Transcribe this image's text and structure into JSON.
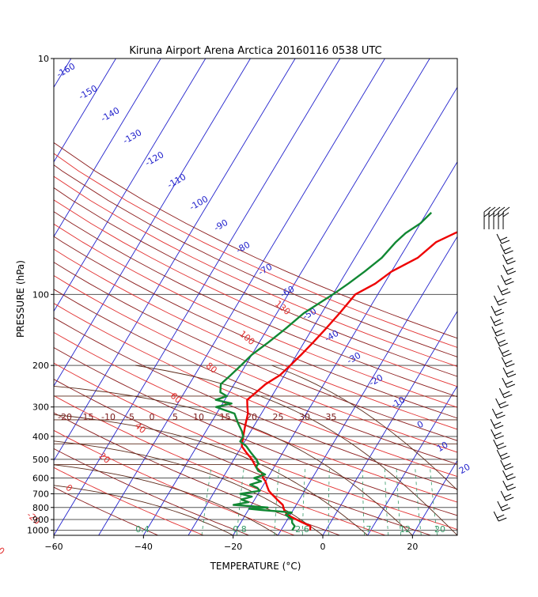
{
  "chart_data": {
    "type": "line",
    "title": "Kiruna Airport Arena Arctica 20160116 0538 UTC",
    "xlabel": "TEMPERATURE (°C)",
    "ylabel": "PRESSURE (hPa)",
    "x_ticks": [
      -60,
      -40,
      -20,
      0,
      20
    ],
    "xlim": [
      -60,
      30
    ],
    "y_ticks": [
      10,
      100,
      200,
      300,
      400,
      500,
      600,
      700,
      800,
      900,
      1000
    ],
    "ylim": [
      1050,
      10
    ],
    "y_scale": "log",
    "isotherm_labels": [
      "-20",
      "-15",
      "-10",
      "-5",
      "0",
      "5",
      "10",
      "15",
      "20",
      "25",
      "30",
      "35"
    ],
    "dry_adiabat_labels": [
      "-160",
      "-150",
      "-140",
      "-130",
      "-120",
      "-110",
      "-100",
      "-90",
      "-80",
      "-70",
      "-60",
      "-50",
      "-40",
      "-30",
      "-20",
      "-10",
      "0",
      "10",
      "20"
    ],
    "moist_adiabat_labels": [
      "130",
      "100",
      "80",
      "60",
      "40",
      "20",
      "0",
      "-20",
      "-40"
    ],
    "mixing_ratio_labels": [
      "0.4",
      "0.8",
      "2.6",
      "7",
      "12",
      "20"
    ],
    "series": [
      {
        "color": "#ee0000",
        "p": [
          1000,
          960,
          930,
          900,
          870,
          850,
          820,
          800,
          780,
          760,
          740,
          720,
          700,
          680,
          650,
          620,
          600,
          570,
          540,
          500,
          470,
          440,
          400,
          360,
          320,
          300,
          280,
          260,
          240,
          220,
          200,
          180,
          160,
          140,
          120,
          100,
          90,
          80,
          70,
          60,
          55,
          50,
          45
        ],
        "values": [
          -3.5,
          -4,
          -6,
          -8,
          -10,
          -11,
          -12,
          -12.5,
          -13,
          -14,
          -15,
          -16,
          -17,
          -18,
          -19,
          -20,
          -21,
          -22,
          -24,
          -26,
          -28,
          -30,
          -31,
          -32,
          -33,
          -34,
          -35,
          -34,
          -33,
          -31,
          -30,
          -29,
          -28,
          -27,
          -26,
          -25,
          -22,
          -20,
          -16,
          -14,
          -11,
          -7,
          -4
        ]
      },
      {
        "color": "#118833",
        "p": [
          1000,
          960,
          930,
          900,
          880,
          860,
          840,
          820,
          810,
          800,
          790,
          780,
          760,
          740,
          720,
          700,
          680,
          660,
          640,
          620,
          600,
          580,
          560,
          540,
          520,
          500,
          470,
          440,
          420,
          400,
          380,
          350,
          320,
          300,
          290,
          280,
          270,
          260,
          240,
          220,
          200,
          180,
          160,
          140,
          120,
          100,
          90,
          80,
          70,
          60,
          55,
          50,
          45
        ],
        "values": [
          -7.5,
          -7.5,
          -8.5,
          -9,
          -10,
          -11,
          -10,
          -17,
          -20,
          -16,
          -20,
          -24,
          -21,
          -23,
          -21,
          -24,
          -20,
          -21,
          -23,
          -21,
          -23,
          -21,
          -23,
          -24,
          -24,
          -25,
          -27,
          -29,
          -31,
          -31,
          -32,
          -34,
          -36,
          -41,
          -38,
          -42,
          -40,
          -42,
          -43,
          -42,
          -41,
          -40,
          -38,
          -36,
          -34,
          -30,
          -28,
          -26,
          -24,
          -23,
          -22,
          -20,
          -19
        ]
      }
    ],
    "wind_barbs": "right-column"
  }
}
